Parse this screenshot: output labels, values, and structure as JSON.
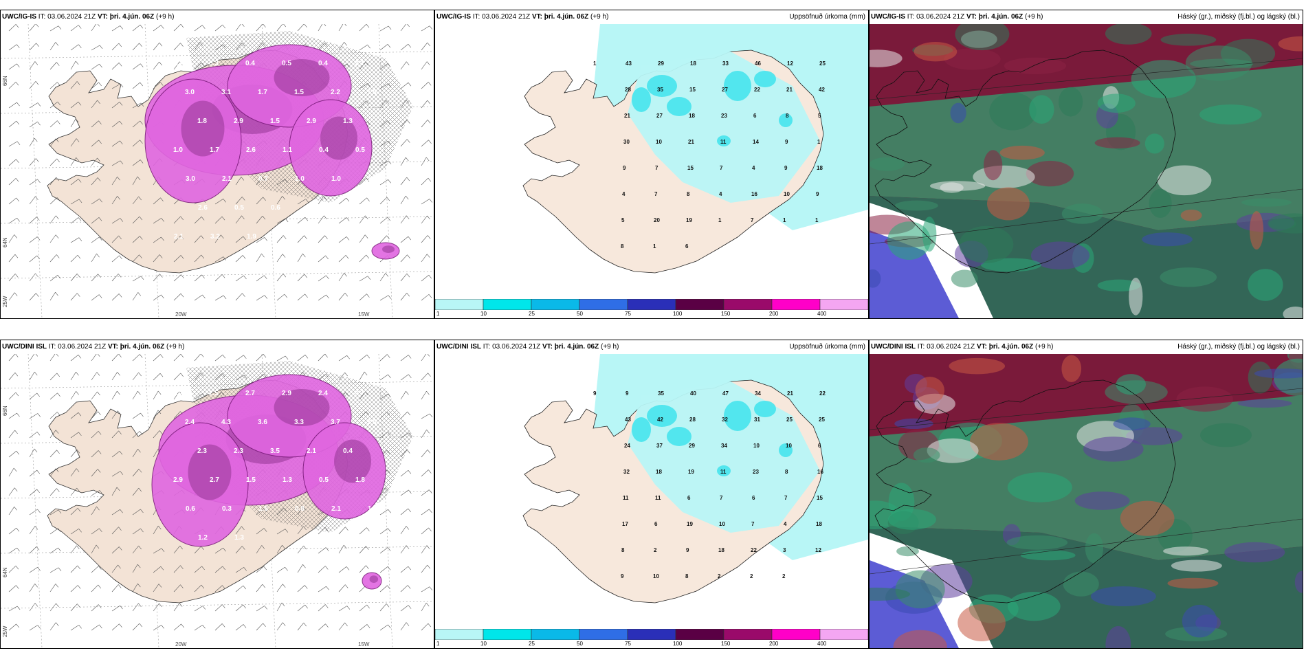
{
  "rows": [
    {
      "model": "UWC/IG-IS",
      "it_label": "IT:",
      "it_value": "03.06.2024 21Z",
      "vt_label": "VT:",
      "vt_value": "þri. 4.jún. 06Z",
      "lead": "(+9 h)"
    },
    {
      "model": "UWC/DINI ISL",
      "it_label": "IT:",
      "it_value": "03.06.2024 21Z",
      "vt_label": "VT:",
      "vt_value": "þri. 4.jún. 06Z",
      "lead": "(+9 h)"
    }
  ],
  "panels": {
    "precip_title": "Uppsöfnuð úrkoma (mm)",
    "cloud_title": "Háský (gr.), miðský (fj.bl.) og lágský (bl.)"
  },
  "axes": {
    "lon_20w": "20W",
    "lon_15w": "15W",
    "lat_66n": "66N",
    "lat_64n": "64N",
    "lat_25w": "25W"
  },
  "colorbar": {
    "labels": [
      "1",
      "10",
      "25",
      "50",
      "75",
      "100",
      "150",
      "200",
      "400"
    ],
    "colors": [
      "#b8f6f6",
      "#00e6ea",
      "#0ab9e8",
      "#2f6ee6",
      "#2a2fb8",
      "#5a0044",
      "#9a0a6a",
      "#ff00c8",
      "#f4a6f2"
    ]
  },
  "precip_labels": {
    "row1": [
      "1",
      "43",
      "29",
      "18",
      "33",
      "46",
      "12",
      "25",
      "28",
      "35",
      "15",
      "27",
      "22",
      "21",
      "42",
      "21",
      "27",
      "18",
      "23",
      "6",
      "8",
      "5",
      "30",
      "10",
      "21",
      "11",
      "14",
      "9",
      "1",
      "9",
      "7",
      "15",
      "7",
      "4",
      "9",
      "18",
      "4",
      "7",
      "8",
      "4",
      "16",
      "10",
      "9",
      "5",
      "20",
      "19",
      "1",
      "7",
      "1",
      "1",
      "8",
      "1",
      "6"
    ],
    "row2": [
      "9",
      "9",
      "35",
      "40",
      "47",
      "34",
      "21",
      "22",
      "43",
      "42",
      "28",
      "32",
      "31",
      "25",
      "25",
      "24",
      "37",
      "29",
      "34",
      "10",
      "10",
      "6",
      "32",
      "18",
      "19",
      "11",
      "23",
      "8",
      "16",
      "11",
      "11",
      "6",
      "7",
      "6",
      "7",
      "15",
      "17",
      "6",
      "19",
      "10",
      "7",
      "4",
      "18",
      "8",
      "2",
      "9",
      "18",
      "22",
      "3",
      "12",
      "9",
      "10",
      "8",
      "2",
      "2",
      "2"
    ]
  },
  "wind_labels": {
    "row1": [
      "0.3",
      "0.3",
      "0.4",
      "0.5",
      "0.4",
      "2.1",
      "3.0",
      "3.1",
      "1.7",
      "1.5",
      "2.2",
      "1.9",
      "1.8",
      "2.9",
      "1.5",
      "2.9",
      "1.3",
      "1.0",
      "1.7",
      "2.6",
      "1.1",
      "0.4",
      "0.5",
      "3.0",
      "2.1",
      "0.7",
      "1.0",
      "1.0",
      "1.2",
      "2.6",
      "0.5",
      "0.6",
      "1.8",
      "2.2",
      "2.1",
      "3.2",
      "1.9"
    ],
    "row2": [
      "4.0",
      "2.5",
      "2.7",
      "2.9",
      "2.4",
      "4.7",
      "2.4",
      "4.3",
      "3.6",
      "3.3",
      "3.7",
      "3.0",
      "2.3",
      "2.3",
      "3.5",
      "2.1",
      "0.4",
      "2.9",
      "2.7",
      "1.5",
      "1.3",
      "0.5",
      "1.8",
      "0.6",
      "0.3",
      "1.5",
      "0.8",
      "2.1",
      "1.4",
      "1.2",
      "1.3"
    ]
  }
}
